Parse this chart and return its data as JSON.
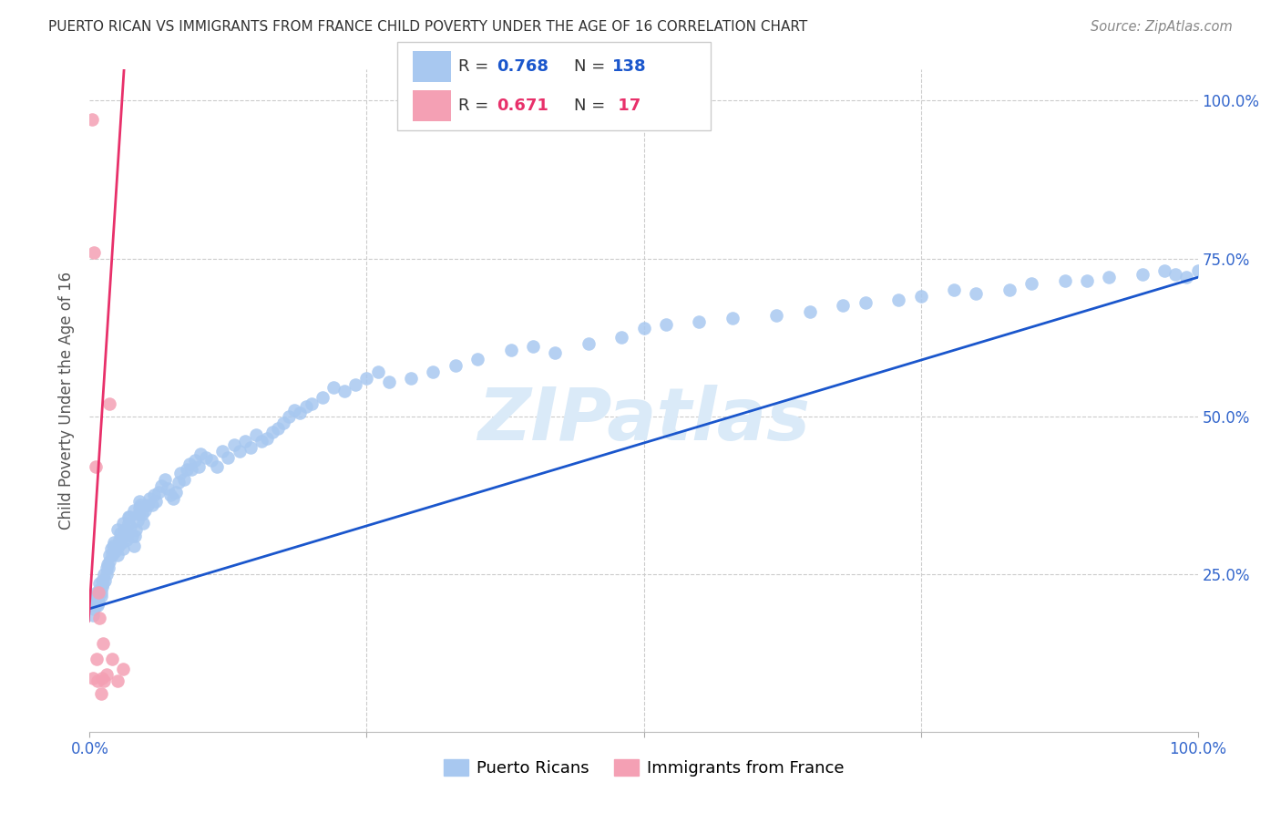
{
  "title": "PUERTO RICAN VS IMMIGRANTS FROM FRANCE CHILD POVERTY UNDER THE AGE OF 16 CORRELATION CHART",
  "source": "Source: ZipAtlas.com",
  "ylabel": "Child Poverty Under the Age of 16",
  "legend_blue_label": "Puerto Ricans",
  "legend_pink_label": "Immigrants from France",
  "blue_color": "#a8c8f0",
  "pink_color": "#f4a0b4",
  "blue_line_color": "#1a56cc",
  "pink_line_color": "#e8306a",
  "watermark": "ZIPatlas",
  "watermark_color": "#daeaf8",
  "background_color": "#ffffff",
  "blue_scatter_x": [
    0.002,
    0.003,
    0.004,
    0.004,
    0.005,
    0.005,
    0.006,
    0.006,
    0.007,
    0.007,
    0.008,
    0.008,
    0.009,
    0.009,
    0.01,
    0.01,
    0.011,
    0.011,
    0.012,
    0.013,
    0.014,
    0.015,
    0.015,
    0.016,
    0.017,
    0.018,
    0.018,
    0.019,
    0.02,
    0.021,
    0.022,
    0.023,
    0.025,
    0.026,
    0.027,
    0.028,
    0.029,
    0.03,
    0.031,
    0.032,
    0.033,
    0.034,
    0.035,
    0.036,
    0.037,
    0.038,
    0.04,
    0.041,
    0.042,
    0.043,
    0.044,
    0.045,
    0.046,
    0.047,
    0.048,
    0.05,
    0.052,
    0.054,
    0.056,
    0.058,
    0.06,
    0.062,
    0.065,
    0.068,
    0.07,
    0.073,
    0.075,
    0.078,
    0.08,
    0.082,
    0.085,
    0.088,
    0.09,
    0.092,
    0.095,
    0.098,
    0.1,
    0.105,
    0.11,
    0.115,
    0.12,
    0.125,
    0.13,
    0.135,
    0.14,
    0.145,
    0.15,
    0.155,
    0.16,
    0.165,
    0.17,
    0.175,
    0.18,
    0.185,
    0.19,
    0.195,
    0.2,
    0.21,
    0.22,
    0.23,
    0.24,
    0.25,
    0.26,
    0.27,
    0.29,
    0.31,
    0.33,
    0.35,
    0.38,
    0.4,
    0.42,
    0.45,
    0.48,
    0.5,
    0.52,
    0.55,
    0.58,
    0.62,
    0.65,
    0.68,
    0.7,
    0.73,
    0.75,
    0.78,
    0.8,
    0.83,
    0.85,
    0.88,
    0.9,
    0.92,
    0.95,
    0.97,
    0.98,
    0.99,
    1.0,
    0.025,
    0.03,
    0.035,
    0.04,
    0.045
  ],
  "blue_scatter_y": [
    0.2,
    0.185,
    0.21,
    0.195,
    0.2,
    0.215,
    0.205,
    0.22,
    0.2,
    0.21,
    0.215,
    0.205,
    0.225,
    0.235,
    0.22,
    0.215,
    0.24,
    0.23,
    0.235,
    0.25,
    0.24,
    0.26,
    0.25,
    0.265,
    0.26,
    0.27,
    0.28,
    0.29,
    0.28,
    0.295,
    0.3,
    0.285,
    0.28,
    0.295,
    0.305,
    0.315,
    0.3,
    0.29,
    0.31,
    0.32,
    0.305,
    0.315,
    0.33,
    0.34,
    0.325,
    0.31,
    0.295,
    0.31,
    0.32,
    0.335,
    0.345,
    0.355,
    0.36,
    0.345,
    0.33,
    0.35,
    0.36,
    0.37,
    0.36,
    0.375,
    0.365,
    0.38,
    0.39,
    0.4,
    0.385,
    0.375,
    0.37,
    0.38,
    0.395,
    0.41,
    0.4,
    0.415,
    0.425,
    0.415,
    0.43,
    0.42,
    0.44,
    0.435,
    0.43,
    0.42,
    0.445,
    0.435,
    0.455,
    0.445,
    0.46,
    0.45,
    0.47,
    0.46,
    0.465,
    0.475,
    0.48,
    0.49,
    0.5,
    0.51,
    0.505,
    0.515,
    0.52,
    0.53,
    0.545,
    0.54,
    0.55,
    0.56,
    0.57,
    0.555,
    0.56,
    0.57,
    0.58,
    0.59,
    0.605,
    0.61,
    0.6,
    0.615,
    0.625,
    0.64,
    0.645,
    0.65,
    0.655,
    0.66,
    0.665,
    0.675,
    0.68,
    0.685,
    0.69,
    0.7,
    0.695,
    0.7,
    0.71,
    0.715,
    0.715,
    0.72,
    0.725,
    0.73,
    0.725,
    0.72,
    0.73,
    0.32,
    0.33,
    0.34,
    0.35,
    0.365
  ],
  "pink_scatter_x": [
    0.002,
    0.003,
    0.004,
    0.005,
    0.006,
    0.007,
    0.008,
    0.009,
    0.01,
    0.011,
    0.012,
    0.013,
    0.015,
    0.018,
    0.02,
    0.025,
    0.03
  ],
  "pink_scatter_y": [
    0.97,
    0.085,
    0.76,
    0.42,
    0.115,
    0.08,
    0.22,
    0.18,
    0.06,
    0.085,
    0.14,
    0.08,
    0.09,
    0.52,
    0.115,
    0.08,
    0.1
  ],
  "blue_line_x": [
    0.0,
    1.0
  ],
  "blue_line_y": [
    0.195,
    0.72
  ],
  "pink_line_x": [
    -0.001,
    0.031
  ],
  "pink_line_y": [
    0.175,
    1.05
  ],
  "xlim": [
    0.0,
    1.0
  ],
  "ylim": [
    0.0,
    1.05
  ]
}
